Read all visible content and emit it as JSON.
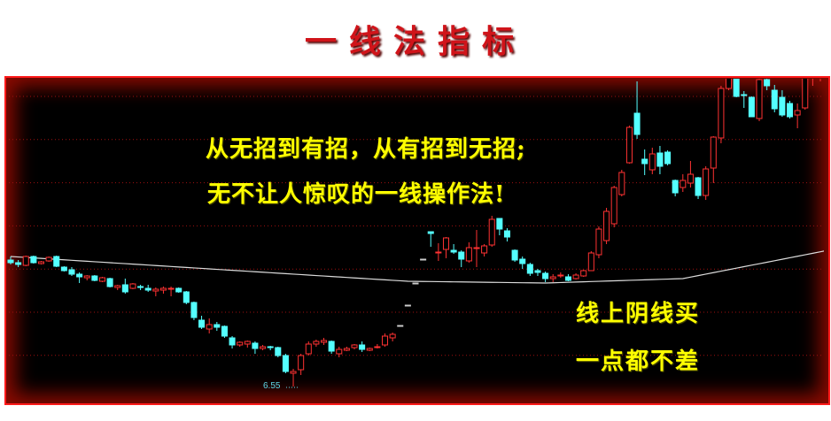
{
  "title": "一线法指标",
  "annotations": {
    "line1": "从无招到有招，从有招到无招;",
    "line2": "无不让人惊叹的一线操作法!",
    "line3": "线上阴线买",
    "line4": "一点都不差"
  },
  "chart_data": {
    "type": "candlestick",
    "title": "一线法指标",
    "ylim": [
      6.42,
      10.02
    ],
    "grid": true,
    "low_label": "6.55",
    "low_label_index": 38,
    "colors": {
      "up": "#ff3232",
      "down": "#54ffff",
      "ma": "#dcdcdc",
      "grid": "#a01010",
      "frame": "#ff1a1a",
      "text": "#ffff00",
      "title": "#d0141a"
    },
    "candles_ohlc": [
      [
        7.98,
        8.02,
        7.93,
        7.95
      ],
      [
        7.95,
        7.98,
        7.9,
        7.93
      ],
      [
        7.92,
        8.03,
        7.91,
        8.02
      ],
      [
        8.02,
        8.03,
        7.94,
        7.95
      ],
      [
        7.94,
        7.97,
        7.93,
        7.96
      ],
      [
        7.97,
        8.02,
        7.96,
        8.01
      ],
      [
        8.02,
        8.03,
        7.9,
        7.91
      ],
      [
        7.9,
        7.91,
        7.85,
        7.86
      ],
      [
        7.87,
        7.9,
        7.8,
        7.82
      ],
      [
        7.82,
        7.84,
        7.72,
        7.79
      ],
      [
        7.78,
        7.81,
        7.75,
        7.8
      ],
      [
        7.8,
        7.81,
        7.74,
        7.75
      ],
      [
        7.74,
        7.79,
        7.73,
        7.78
      ],
      [
        7.77,
        7.78,
        7.67,
        7.68
      ],
      [
        7.67,
        7.7,
        7.64,
        7.69
      ],
      [
        7.7,
        7.77,
        7.6,
        7.62
      ],
      [
        7.66,
        7.72,
        7.65,
        7.71
      ],
      [
        7.68,
        7.7,
        7.64,
        7.67
      ],
      [
        7.66,
        7.7,
        7.62,
        7.64
      ],
      [
        7.63,
        7.67,
        7.57,
        7.65
      ],
      [
        7.64,
        7.68,
        7.6,
        7.66
      ],
      [
        7.65,
        7.68,
        7.57,
        7.66
      ],
      [
        7.66,
        7.67,
        7.61,
        7.62
      ],
      [
        7.62,
        7.63,
        7.48,
        7.5
      ],
      [
        7.5,
        7.51,
        7.3,
        7.33
      ],
      [
        7.3,
        7.35,
        7.2,
        7.22
      ],
      [
        7.2,
        7.32,
        7.15,
        7.25
      ],
      [
        7.25,
        7.28,
        7.18,
        7.22
      ],
      [
        7.23,
        7.24,
        7.1,
        7.12
      ],
      [
        7.1,
        7.12,
        6.98,
        7.02
      ],
      [
        7.02,
        7.06,
        7.0,
        7.05
      ],
      [
        7.03,
        7.07,
        6.99,
        7.06
      ],
      [
        7.04,
        7.06,
        6.92,
        6.98
      ],
      [
        6.98,
        7.02,
        6.96,
        7.0
      ],
      [
        7.0,
        7.01,
        6.96,
        6.99
      ],
      [
        6.99,
        7.0,
        6.88,
        6.9
      ],
      [
        6.9,
        6.92,
        6.7,
        6.72
      ],
      [
        6.7,
        6.75,
        6.55,
        6.72
      ],
      [
        6.74,
        6.92,
        6.68,
        6.9
      ],
      [
        6.92,
        7.06,
        6.9,
        7.03
      ],
      [
        7.03,
        7.08,
        7.0,
        7.06
      ],
      [
        7.05,
        7.1,
        7.02,
        7.07
      ],
      [
        7.06,
        7.07,
        6.92,
        6.95
      ],
      [
        6.92,
        7.0,
        6.88,
        6.97
      ],
      [
        6.96,
        7.0,
        6.95,
        6.98
      ],
      [
        6.99,
        7.03,
        6.97,
        7.02
      ],
      [
        7.02,
        7.06,
        6.94,
        6.97
      ],
      [
        6.96,
        6.99,
        6.95,
        6.98
      ],
      [
        6.99,
        7.03,
        6.98,
        7.0
      ],
      [
        7.02,
        7.15,
        7.0,
        7.12
      ],
      [
        7.1,
        7.16,
        7.06,
        7.14
      ],
      [
        7.24,
        7.24,
        7.24,
        7.24
      ],
      [
        7.47,
        7.47,
        7.47,
        7.47
      ],
      [
        7.72,
        7.72,
        7.72,
        7.72
      ],
      [
        7.99,
        7.99,
        7.99,
        7.99
      ],
      [
        8.3,
        8.3,
        8.13,
        8.28
      ],
      [
        8.07,
        8.17,
        7.97,
        8.07
      ],
      [
        8.1,
        8.24,
        8.0,
        8.23
      ],
      [
        8.09,
        8.16,
        8.05,
        8.07
      ],
      [
        8.07,
        8.09,
        7.9,
        7.99
      ],
      [
        7.97,
        8.18,
        7.95,
        8.12
      ],
      [
        8.11,
        8.32,
        7.9,
        8.12
      ],
      [
        8.06,
        8.16,
        8.02,
        8.14
      ],
      [
        8.15,
        8.48,
        8.13,
        8.44
      ],
      [
        8.45,
        8.45,
        8.26,
        8.33
      ],
      [
        8.31,
        8.34,
        8.19,
        8.24
      ],
      [
        8.09,
        8.1,
        7.96,
        7.98
      ],
      [
        7.99,
        8.02,
        7.88,
        7.94
      ],
      [
        7.93,
        7.95,
        7.8,
        7.83
      ],
      [
        7.86,
        7.88,
        7.8,
        7.84
      ],
      [
        7.83,
        7.85,
        7.73,
        7.77
      ],
      [
        7.77,
        7.82,
        7.73,
        7.79
      ],
      [
        7.8,
        7.84,
        7.78,
        7.81
      ],
      [
        7.79,
        7.82,
        7.74,
        7.75
      ],
      [
        7.77,
        7.83,
        7.76,
        7.81
      ],
      [
        7.8,
        7.87,
        7.79,
        7.86
      ],
      [
        7.86,
        8.08,
        7.86,
        8.06
      ],
      [
        8.04,
        8.36,
        8.0,
        8.33
      ],
      [
        8.2,
        8.57,
        8.16,
        8.53
      ],
      [
        8.39,
        8.82,
        8.35,
        8.8
      ],
      [
        8.72,
        9.0,
        8.7,
        8.97
      ],
      [
        9.08,
        9.5,
        9.07,
        9.48
      ],
      [
        9.64,
        10.0,
        9.35,
        9.4
      ],
      [
        9.12,
        9.23,
        8.94,
        9.07
      ],
      [
        9.0,
        9.25,
        8.95,
        9.18
      ],
      [
        9.19,
        9.27,
        8.95,
        9.04
      ],
      [
        9.2,
        9.22,
        9.05,
        9.07
      ],
      [
        8.88,
        8.89,
        8.7,
        8.74
      ],
      [
        8.8,
        8.95,
        8.75,
        8.88
      ],
      [
        8.85,
        9.1,
        8.8,
        8.95
      ],
      [
        8.91,
        8.92,
        8.67,
        8.71
      ],
      [
        8.71,
        9.04,
        8.66,
        9.01
      ],
      [
        9.02,
        9.38,
        8.85,
        9.37
      ],
      [
        9.36,
        9.95,
        9.3,
        9.92
      ],
      [
        9.92,
        10.1,
        9.9,
        10.05
      ],
      [
        10.04,
        10.05,
        9.82,
        9.83
      ],
      [
        9.85,
        9.89,
        9.7,
        9.84
      ],
      [
        9.82,
        9.83,
        9.6,
        9.6
      ],
      [
        9.58,
        10.05,
        9.55,
        10.02
      ],
      [
        10.02,
        10.1,
        9.9,
        9.95
      ],
      [
        9.9,
        9.96,
        9.65,
        9.69
      ],
      [
        9.82,
        9.9,
        9.6,
        9.62
      ],
      [
        9.75,
        9.78,
        9.58,
        9.6
      ],
      [
        9.62,
        9.75,
        9.47,
        9.67
      ],
      [
        9.7,
        10.1,
        9.68,
        10.05
      ],
      [
        10.05,
        10.1,
        9.95,
        10.05
      ],
      [
        10.05,
        10.1,
        10.0,
        10.06
      ]
    ],
    "ma_line": [
      [
        0,
        8.02
      ],
      [
        52,
        7.74
      ],
      [
        70,
        7.72
      ],
      [
        88,
        7.77
      ],
      [
        107,
        8.09
      ]
    ]
  }
}
